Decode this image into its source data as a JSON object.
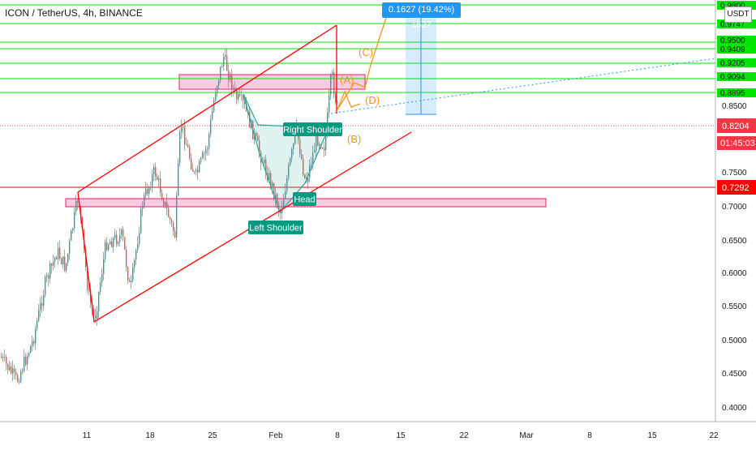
{
  "header": {
    "title": "ICON / TetherUS, 4h, BINANCE",
    "currency": "USDT",
    "measure_label": "0.1627 (19.42%) 1627"
  },
  "chart_data": {
    "type": "candlestick",
    "symbol": "ICON / TetherUS",
    "interval": "4h",
    "exchange": "BINANCE",
    "y_axis": {
      "range": [
        0.38,
        1.0
      ],
      "ticks": [
        "0.4000",
        "0.4500",
        "0.5000",
        "0.5500",
        "0.6000",
        "0.6500",
        "0.7000",
        "0.7500",
        "0.8500"
      ],
      "highlighted_labels": [
        {
          "text": "0.9800",
          "color": "#00e600"
        },
        {
          "text": "0.9747",
          "color": "#00e600"
        },
        {
          "text": "0.9500",
          "color": "#00e600"
        },
        {
          "text": "0.9409",
          "color": "#00e600"
        },
        {
          "text": "0.9205",
          "color": "#00e600"
        },
        {
          "text": "0.9094",
          "color": "#00e600"
        },
        {
          "text": "0.8895",
          "color": "#00e600"
        },
        {
          "text": "0.8204",
          "color": "#f23645"
        },
        {
          "text": "01:45:03",
          "color": "#f23645"
        },
        {
          "text": "0.7292",
          "color": "#ff0000"
        }
      ]
    },
    "x_axis": {
      "ticks": [
        "11",
        "18",
        "25",
        "Feb",
        "8",
        "15",
        "22",
        "Mar",
        "8",
        "15",
        "22"
      ]
    },
    "current_price": 0.8204,
    "countdown": "01:45:03",
    "support_level": 0.7292,
    "resistance_levels": [
      0.98,
      0.9747,
      0.95,
      0.9409,
      0.9205,
      0.9094,
      0.8895
    ],
    "zones": [
      {
        "name": "upper-zone",
        "from": 0.8895,
        "to": 0.9094
      },
      {
        "name": "lower-zone",
        "from": 0.706,
        "to": 0.718
      }
    ],
    "annotations": [
      {
        "text": "Right Shoulder",
        "color": "#089981"
      },
      {
        "text": "Head",
        "color": "#089981"
      },
      {
        "text": "Left Shoulder",
        "color": "#089981"
      },
      {
        "text": "(A)",
        "color": "#f7931a"
      },
      {
        "text": "(B)",
        "color": "#f7931a"
      },
      {
        "text": "(C)",
        "color": "#f7931a"
      },
      {
        "text": "(D)",
        "color": "#f7931a"
      }
    ],
    "measurement": {
      "change": 0.1627,
      "percent": 19.42,
      "bars": 1627
    },
    "colors": {
      "up": "#26a69a",
      "down": "#ef5350",
      "channel": "#ff0000",
      "level": "#00e600",
      "zone_fill": "#f8bbd9",
      "zone_stroke": "#e91e63",
      "wave": "#f7931a",
      "measure": "#2196f3",
      "pattern": "#26a69a"
    }
  }
}
